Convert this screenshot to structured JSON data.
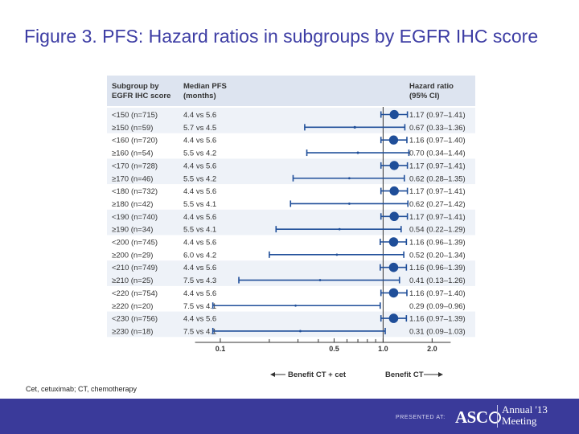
{
  "slide": {
    "title": "Figure 3. PFS: Hazard ratios in subgroups by EGFR IHC score",
    "footnote": "Cet, cetuximab; CT, chemotherapy",
    "presented_at": "PRESENTED AT:",
    "logo_text": "ASC",
    "meeting_line1": "Annual '13",
    "meeting_line2": "Meeting"
  },
  "colors": {
    "title": "#3d3da4",
    "header_band": "#dde4f0",
    "row_band": "#eef2f8",
    "marker": "#1f4e99",
    "text": "#333333",
    "footer": "#3a3a9a"
  },
  "chart_data": {
    "type": "forest",
    "headers": {
      "subgroup": [
        "Subgroup by",
        "EGFR IHC score"
      ],
      "median_pfs": [
        "Median PFS",
        "(months)"
      ],
      "hazard_ratio": [
        "Hazard ratio",
        "(95% CI)"
      ]
    },
    "x_scale": "log",
    "xlim": [
      0.05,
      3.0
    ],
    "x_ticks": [
      {
        "value": 0.1,
        "label": "0.1"
      },
      {
        "value": 0.5,
        "label": "0.5"
      },
      {
        "value": 1.0,
        "label": "1.0"
      },
      {
        "value": 2.0,
        "label": "2.0"
      }
    ],
    "reference_line": 1.0,
    "xlabel_left": "Benefit CT + cet",
    "xlabel_right": "Benefit CT",
    "rows": [
      {
        "subgroup": "<150 (n=715)",
        "pfs": "4.4 vs 5.6",
        "hr_text": "1.17 (0.97–1.41)",
        "hr": 1.17,
        "lo": 0.97,
        "hi": 1.41,
        "n": 715
      },
      {
        "subgroup": "≥150 (n=59)",
        "pfs": "5.7 vs 4.5",
        "hr_text": "0.67 (0.33–1.36)",
        "hr": 0.67,
        "lo": 0.33,
        "hi": 1.36,
        "n": 59
      },
      {
        "subgroup": "<160 (n=720)",
        "pfs": "4.4 vs 5.6",
        "hr_text": "1.16 (0.97–1.40)",
        "hr": 1.16,
        "lo": 0.97,
        "hi": 1.4,
        "n": 720
      },
      {
        "subgroup": "≥160 (n=54)",
        "pfs": "5.5 vs 4.2",
        "hr_text": "0.70 (0.34–1.44)",
        "hr": 0.7,
        "lo": 0.34,
        "hi": 1.44,
        "n": 54
      },
      {
        "subgroup": "<170 (n=728)",
        "pfs": "4.4 vs 5.6",
        "hr_text": "1.17 (0.97–1.41)",
        "hr": 1.17,
        "lo": 0.97,
        "hi": 1.41,
        "n": 728
      },
      {
        "subgroup": "≥170 (n=46)",
        "pfs": "5.5 vs 4.2",
        "hr_text": "0.62 (0.28–1.35)",
        "hr": 0.62,
        "lo": 0.28,
        "hi": 1.35,
        "n": 46
      },
      {
        "subgroup": "<180 (n=732)",
        "pfs": "4.4 vs 5.6",
        "hr_text": "1.17 (0.97–1.41)",
        "hr": 1.17,
        "lo": 0.97,
        "hi": 1.41,
        "n": 732
      },
      {
        "subgroup": "≥180 (n=42)",
        "pfs": "5.5 vs 4.1",
        "hr_text": "0.62 (0.27–1.42)",
        "hr": 0.62,
        "lo": 0.27,
        "hi": 1.42,
        "n": 42
      },
      {
        "subgroup": "<190 (n=740)",
        "pfs": "4.4 vs 5.6",
        "hr_text": "1.17 (0.97–1.41)",
        "hr": 1.17,
        "lo": 0.97,
        "hi": 1.41,
        "n": 740
      },
      {
        "subgroup": "≥190 (n=34)",
        "pfs": "5.5 vs 4.1",
        "hr_text": "0.54 (0.22–1.29)",
        "hr": 0.54,
        "lo": 0.22,
        "hi": 1.29,
        "n": 34
      },
      {
        "subgroup": "<200 (n=745)",
        "pfs": "4.4 vs 5.6",
        "hr_text": "1.16 (0.96–1.39)",
        "hr": 1.16,
        "lo": 0.96,
        "hi": 1.39,
        "n": 745
      },
      {
        "subgroup": "≥200 (n=29)",
        "pfs": "6.0 vs 4.2",
        "hr_text": "0.52 (0.20–1.34)",
        "hr": 0.52,
        "lo": 0.2,
        "hi": 1.34,
        "n": 29
      },
      {
        "subgroup": "<210 (n=749)",
        "pfs": "4.4 vs 5.6",
        "hr_text": "1.16 (0.96–1.39)",
        "hr": 1.16,
        "lo": 0.96,
        "hi": 1.39,
        "n": 749
      },
      {
        "subgroup": "≥210 (n=25)",
        "pfs": "7.5 vs 4.3",
        "hr_text": "0.41 (0.13–1.26)",
        "hr": 0.41,
        "lo": 0.13,
        "hi": 1.26,
        "n": 25
      },
      {
        "subgroup": "<220 (n=754)",
        "pfs": "4.4 vs 5.6",
        "hr_text": "1.16 (0.97–1.40)",
        "hr": 1.16,
        "lo": 0.97,
        "hi": 1.4,
        "n": 754
      },
      {
        "subgroup": "≥220 (n=20)",
        "pfs": "7.5 vs 4.1",
        "hr_text": "0.29 (0.09–0.96)",
        "hr": 0.29,
        "lo": 0.09,
        "hi": 0.96,
        "n": 20
      },
      {
        "subgroup": "<230 (n=756)",
        "pfs": "4.4 vs 5.6",
        "hr_text": "1.16 (0.97–1.39)",
        "hr": 1.16,
        "lo": 0.97,
        "hi": 1.39,
        "n": 756
      },
      {
        "subgroup": "≥230 (n=18)",
        "pfs": "7.5 vs 4.1",
        "hr_text": "0.31 (0.09–1.03)",
        "hr": 0.31,
        "lo": 0.09,
        "hi": 1.03,
        "n": 18
      }
    ]
  }
}
